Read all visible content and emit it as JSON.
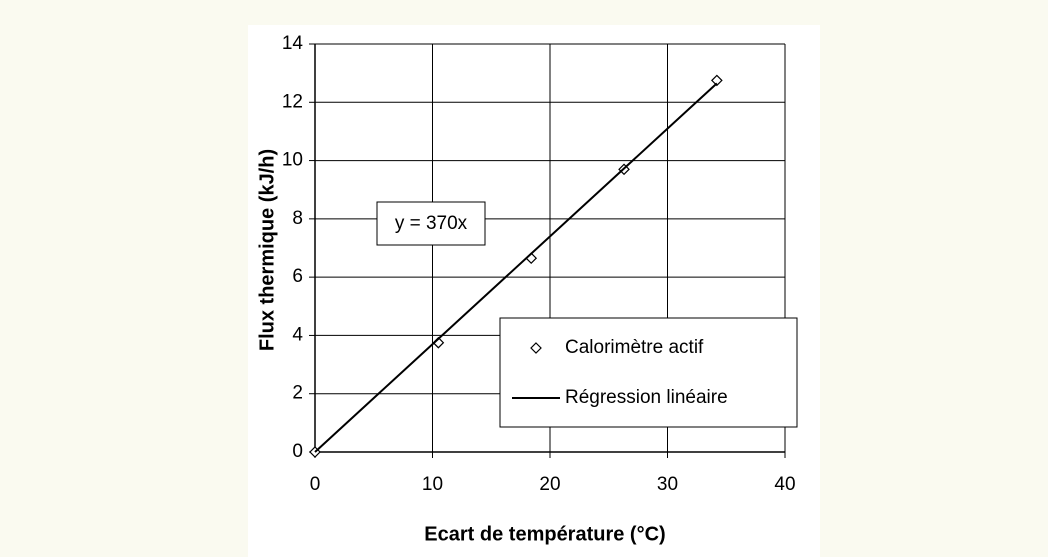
{
  "chart_data": {
    "type": "scatter",
    "xlabel": "Ecart de température (°C)",
    "ylabel": "Flux thermique (kJ/h)",
    "annotation": "y = 370x",
    "series": [
      {
        "name": "Calorimètre actif",
        "mode": "markers",
        "color": "#000000",
        "x": [
          0,
          10.5,
          18.4,
          26.3,
          34.2
        ],
        "values": [
          0,
          3.75,
          6.65,
          9.7,
          12.75
        ]
      },
      {
        "name": "Régression linéaire",
        "mode": "line",
        "color": "#000000",
        "x": [
          0,
          34.2
        ],
        "values": [
          0,
          12.65
        ]
      }
    ],
    "xlim": [
      0,
      40
    ],
    "xticks": [
      0,
      10,
      20,
      30,
      40
    ],
    "ylim": [
      0,
      14
    ],
    "yticks": [
      0,
      2,
      4,
      6,
      8,
      10,
      12,
      14
    ],
    "grid": true,
    "legend": "lower right"
  }
}
